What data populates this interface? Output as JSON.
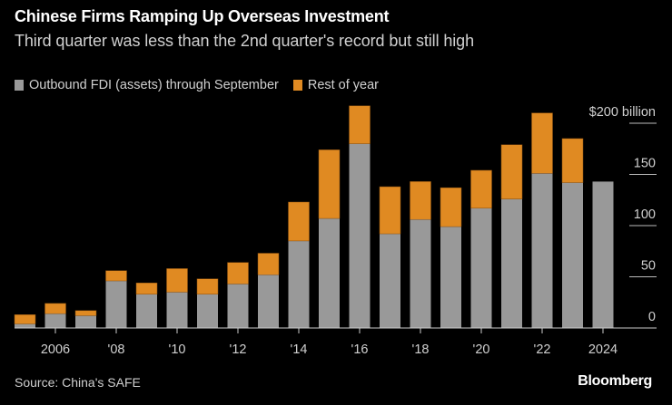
{
  "chart_data": {
    "type": "bar",
    "stacked": true,
    "title": "Chinese Firms Ramping Up Overseas Investment",
    "subtitle": "Third quarter was less than the 2nd quarter's record but still high",
    "categories": [
      2005,
      2006,
      2007,
      2008,
      2009,
      2010,
      2011,
      2012,
      2013,
      2014,
      2015,
      2016,
      2017,
      2018,
      2019,
      2020,
      2021,
      2022,
      2023,
      2024
    ],
    "series": [
      {
        "name": "Outbound FDI (assets) through September",
        "color": "#999999",
        "values": [
          4,
          14,
          12,
          46,
          33,
          35,
          33,
          43,
          52,
          85,
          107,
          180,
          92,
          106,
          99,
          117,
          126,
          151,
          142,
          143
        ]
      },
      {
        "name": "Rest of year",
        "color": "#e08a22",
        "values": [
          9,
          10,
          5,
          10,
          11,
          23,
          15,
          21,
          21,
          38,
          67,
          37,
          46,
          37,
          38,
          37,
          53,
          59,
          43,
          null
        ]
      }
    ],
    "x_tick_labels": [
      {
        "year": 2006,
        "label": "2006"
      },
      {
        "year": 2008,
        "label": "'08"
      },
      {
        "year": 2010,
        "label": "'10"
      },
      {
        "year": 2012,
        "label": "'12"
      },
      {
        "year": 2014,
        "label": "'14"
      },
      {
        "year": 2016,
        "label": "'16"
      },
      {
        "year": 2018,
        "label": "'18"
      },
      {
        "year": 2020,
        "label": "'20"
      },
      {
        "year": 2022,
        "label": "'22"
      },
      {
        "year": 2024,
        "label": "2024"
      }
    ],
    "y_ticks": [
      {
        "value": 0,
        "label": "0"
      },
      {
        "value": 50,
        "label": "50"
      },
      {
        "value": 100,
        "label": "100"
      },
      {
        "value": 150,
        "label": "150"
      },
      {
        "value": 200,
        "label": "$200 billion"
      }
    ],
    "ylim": [
      0,
      200
    ],
    "y_axis_side": "right",
    "legend_placement": "top-left",
    "source": "Source: China's SAFE",
    "brand": "Bloomberg"
  }
}
